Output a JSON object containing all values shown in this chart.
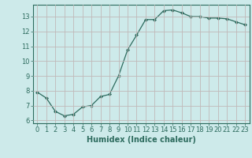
{
  "x": [
    0,
    1,
    2,
    3,
    4,
    5,
    6,
    7,
    8,
    9,
    10,
    11,
    12,
    13,
    14,
    15,
    16,
    17,
    18,
    19,
    20,
    21,
    22,
    23
  ],
  "y": [
    7.9,
    7.5,
    6.6,
    6.3,
    6.4,
    6.9,
    7.0,
    7.6,
    7.75,
    9.0,
    10.75,
    11.75,
    12.8,
    12.8,
    13.4,
    13.45,
    13.25,
    13.0,
    13.0,
    12.9,
    12.9,
    12.85,
    12.65,
    12.45
  ],
  "line_color": "#2d6b5e",
  "marker": "D",
  "marker_size": 2.0,
  "bg_color": "#cdeaea",
  "grid_color": "#c0b8b8",
  "xlabel": "Humidex (Indice chaleur)",
  "xlim": [
    -0.5,
    23.5
  ],
  "ylim": [
    5.8,
    13.8
  ],
  "yticks": [
    6,
    7,
    8,
    9,
    10,
    11,
    12,
    13
  ],
  "xticks": [
    0,
    1,
    2,
    3,
    4,
    5,
    6,
    7,
    8,
    9,
    10,
    11,
    12,
    13,
    14,
    15,
    16,
    17,
    18,
    19,
    20,
    21,
    22,
    23
  ],
  "tick_color": "#2d6b5e",
  "font_size": 6,
  "label_font_size": 7
}
